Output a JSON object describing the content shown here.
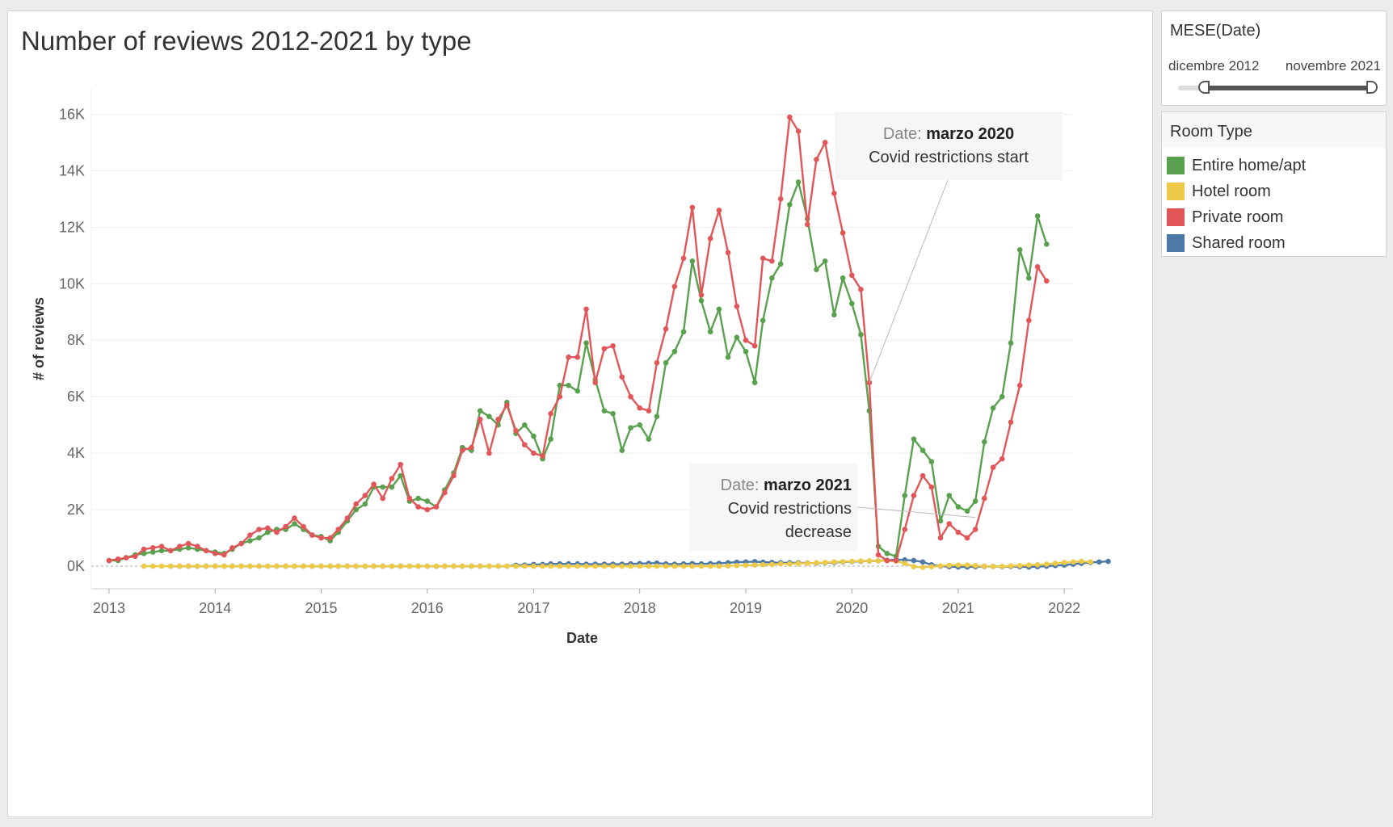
{
  "title": "Number of reviews 2012-2021 by type",
  "filter": {
    "title": "MESE(Date)",
    "range_start": "dicembre 2012",
    "range_end": "novembre 2021",
    "selected_fraction": [
      0.15,
      1.0
    ]
  },
  "legend": {
    "title": "Room Type",
    "items": [
      {
        "label": "Entire home/apt",
        "color": "#59a14f"
      },
      {
        "label": "Hotel room",
        "color": "#edc948"
      },
      {
        "label": "Private room",
        "color": "#e15759"
      },
      {
        "label": "Shared room",
        "color": "#4e79a7"
      }
    ]
  },
  "chart_data": {
    "type": "line",
    "xlabel": "Date",
    "ylabel": "# of reviews",
    "x_ticks": [
      "2013",
      "2014",
      "2015",
      "2016",
      "2017",
      "2018",
      "2019",
      "2020",
      "2021",
      "2022"
    ],
    "y_ticks": [
      "0K",
      "2K",
      "4K",
      "6K",
      "8K",
      "10K",
      "12K",
      "14K",
      "16K"
    ],
    "xlim": [
      "2012-11-01",
      "2022-01-31"
    ],
    "ylim": [
      -800,
      16900
    ],
    "grid": true,
    "legend_position": "right",
    "series": [
      {
        "name": "Entire home/apt",
        "color": "#59a14f",
        "start": "2013-01",
        "values": [
          200,
          200,
          300,
          400,
          450,
          500,
          550,
          550,
          600,
          650,
          600,
          550,
          500,
          450,
          600,
          800,
          900,
          1000,
          1200,
          1300,
          1300,
          1500,
          1300,
          1100,
          1050,
          900,
          1200,
          1600,
          2000,
          2200,
          2800,
          2800,
          2800,
          3200,
          2300,
          2400,
          2300,
          2100,
          2700,
          3300,
          4200,
          4100,
          5500,
          5300,
          5000,
          5800,
          4700,
          5000,
          4600,
          3800,
          4500,
          6400,
          6400,
          6200,
          7900,
          6600,
          5500,
          5400,
          4100,
          4900,
          5000,
          4500,
          5300,
          7200,
          7600,
          8300,
          10800,
          9400,
          8300,
          9100,
          7400,
          8100,
          7600,
          6500,
          8700,
          10200,
          10700,
          12800,
          13600,
          12300,
          10500,
          10800,
          8900,
          10200,
          9300,
          8200,
          5500,
          700,
          450,
          350,
          2500,
          4500,
          4100,
          3700,
          1600,
          2500,
          2100,
          1950,
          2300,
          4400,
          5600,
          6000,
          7900,
          11200,
          10200,
          12400,
          11400
        ]
      },
      {
        "name": "Private room",
        "color": "#e15759",
        "start": "2013-01",
        "values": [
          200,
          250,
          300,
          350,
          600,
          650,
          700,
          550,
          700,
          800,
          700,
          550,
          450,
          400,
          650,
          800,
          1100,
          1300,
          1350,
          1200,
          1400,
          1700,
          1400,
          1100,
          1000,
          1000,
          1300,
          1700,
          2200,
          2500,
          2900,
          2400,
          3100,
          3600,
          2400,
          2100,
          2000,
          2100,
          2600,
          3200,
          4100,
          4200,
          5200,
          4000,
          5200,
          5700,
          4800,
          4300,
          4000,
          3900,
          5400,
          6000,
          7400,
          7400,
          9100,
          6500,
          7700,
          7800,
          6700,
          6000,
          5600,
          5500,
          7200,
          8400,
          9900,
          10900,
          12700,
          9600,
          11600,
          12600,
          11100,
          9200,
          8000,
          7800,
          10900,
          10800,
          13000,
          15900,
          15400,
          12100,
          14400,
          15000,
          13200,
          11800,
          10300,
          9800,
          6500,
          400,
          200,
          200,
          1300,
          2500,
          3200,
          2800,
          1000,
          1500,
          1200,
          1000,
          1300,
          2400,
          3500,
          3800,
          5100,
          6400,
          8700,
          10600,
          10100
        ]
      },
      {
        "name": "Hotel room",
        "color": "#edc948",
        "start": "2013-05",
        "values": [
          0,
          0,
          0,
          0,
          0,
          0,
          0,
          0,
          0,
          0,
          0,
          0,
          0,
          0,
          0,
          0,
          0,
          0,
          0,
          0,
          0,
          0,
          0,
          0,
          0,
          0,
          0,
          0,
          0,
          0,
          0,
          0,
          0,
          0,
          0,
          0,
          0,
          0,
          0,
          0,
          0,
          0,
          0,
          0,
          0,
          0,
          0,
          0,
          0,
          0,
          0,
          0,
          0,
          0,
          0,
          0,
          0,
          0,
          0,
          0,
          0,
          0,
          0,
          0,
          0,
          0,
          10,
          20,
          30,
          40,
          50,
          60,
          80,
          80,
          100,
          100,
          120,
          130,
          150,
          160,
          170,
          180,
          190,
          190,
          190,
          180,
          100,
          -20,
          -40,
          -20,
          10,
          30,
          40,
          40,
          20,
          0,
          -10,
          -10,
          10,
          20,
          40,
          50,
          70,
          100,
          130,
          150,
          170,
          150
        ]
      },
      {
        "name": "Shared room",
        "color": "#4e79a7",
        "start": "2013-08",
        "values": [
          0,
          0,
          0,
          0,
          0,
          0,
          0,
          0,
          0,
          0,
          0,
          0,
          0,
          0,
          0,
          0,
          0,
          0,
          0,
          0,
          0,
          0,
          0,
          0,
          0,
          0,
          0,
          0,
          0,
          0,
          0,
          0,
          0,
          0,
          0,
          0,
          0,
          0,
          0,
          30,
          40,
          60,
          60,
          80,
          80,
          80,
          80,
          70,
          70,
          70,
          70,
          70,
          80,
          90,
          100,
          110,
          80,
          70,
          80,
          90,
          80,
          90,
          100,
          120,
          140,
          150,
          160,
          140,
          130,
          120,
          120,
          120,
          110,
          110,
          120,
          130,
          150,
          160,
          170,
          180,
          190,
          210,
          230,
          220,
          200,
          150,
          50,
          0,
          -20,
          -30,
          -30,
          -20,
          -10,
          -10,
          -20,
          -10,
          -20,
          -30,
          -20,
          0,
          20,
          40,
          70,
          100,
          130,
          150,
          170
        ]
      }
    ],
    "annotations": [
      {
        "date": "2020-03",
        "series": "Private room",
        "prefix": "Date: ",
        "date_label": "marzo 2020",
        "text": "Covid restrictions start"
      },
      {
        "date": "2021-03",
        "series": "Entire home/apt",
        "prefix": "Date: ",
        "date_label": "marzo 2021",
        "text_lines": [
          "Covid restrictions",
          "decrease"
        ]
      }
    ]
  }
}
